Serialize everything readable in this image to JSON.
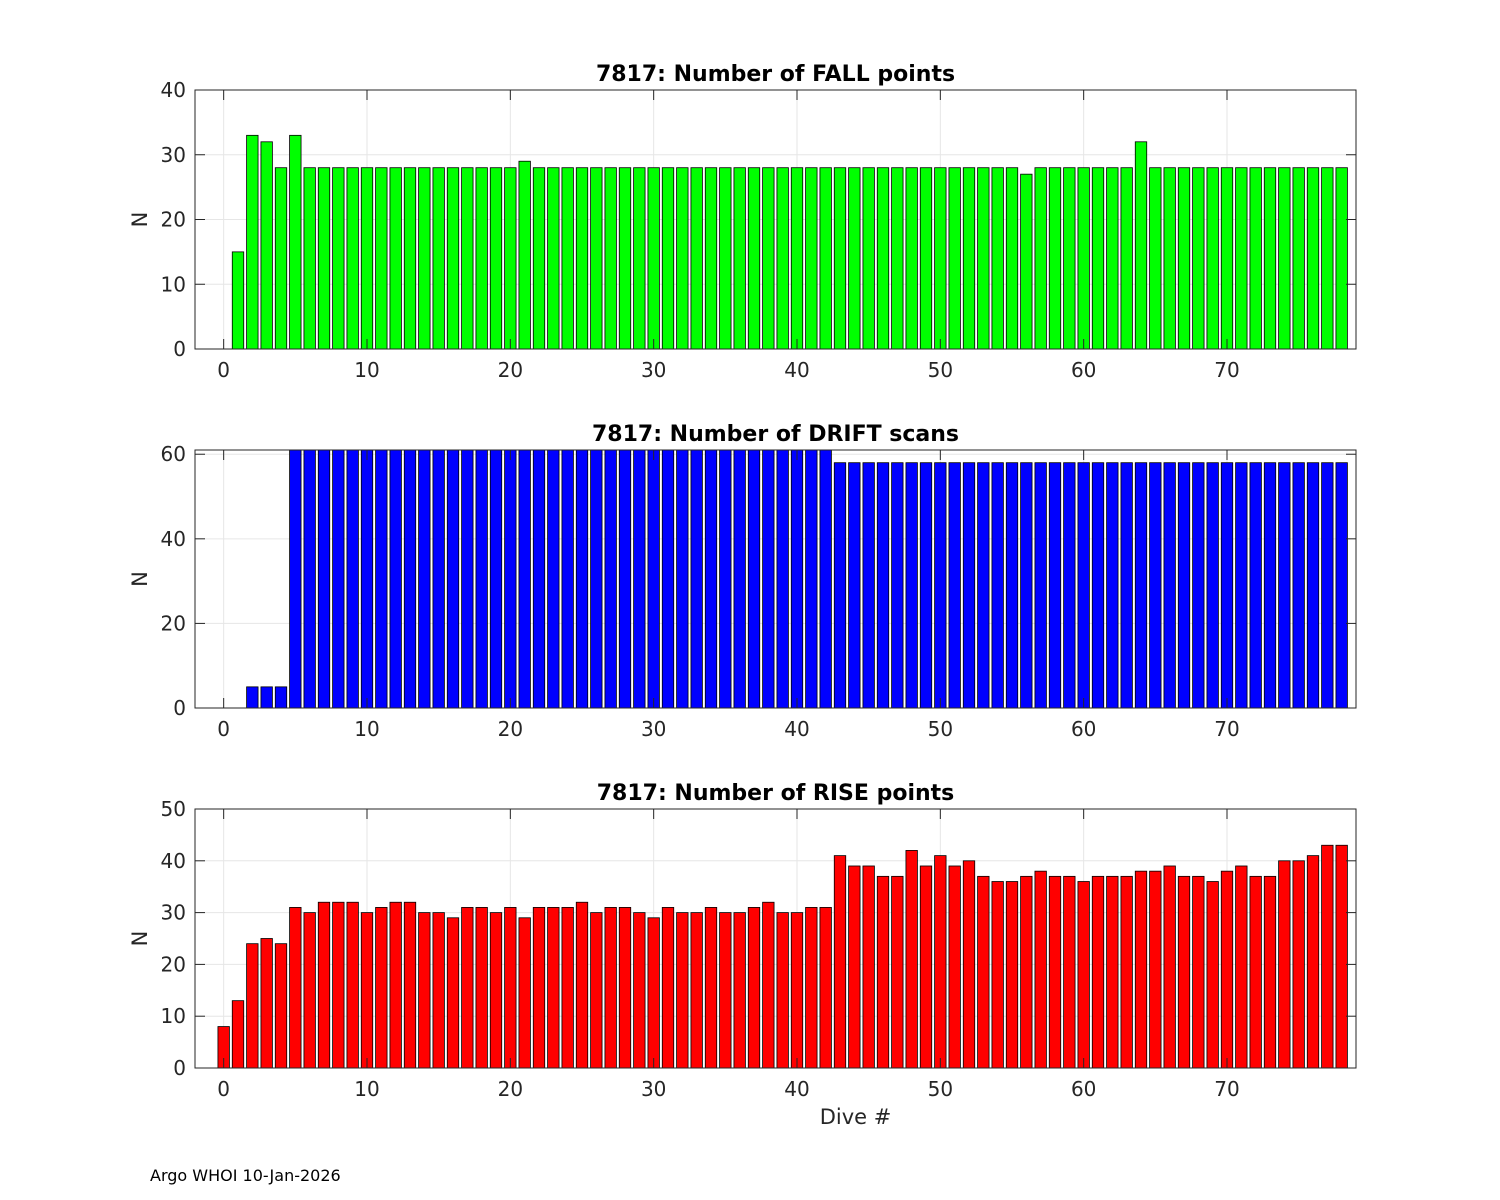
{
  "footer": "Argo WHOI 10-Jan-2026",
  "chart_data": [
    {
      "type": "bar",
      "title": "7817: Number of FALL points",
      "xlabel": "",
      "ylabel": "N",
      "xlim": [
        -2,
        79
      ],
      "ylim": [
        0,
        40
      ],
      "xticks": [
        0,
        10,
        20,
        30,
        40,
        50,
        60,
        70
      ],
      "yticks": [
        0,
        10,
        20,
        30,
        40
      ],
      "grid": true,
      "color": "#00ff00",
      "x": [
        1,
        2,
        3,
        4,
        5,
        6,
        7,
        8,
        9,
        10,
        11,
        12,
        13,
        14,
        15,
        16,
        17,
        18,
        19,
        20,
        21,
        22,
        23,
        24,
        25,
        26,
        27,
        28,
        29,
        30,
        31,
        32,
        33,
        34,
        35,
        36,
        37,
        38,
        39,
        40,
        41,
        42,
        43,
        44,
        45,
        46,
        47,
        48,
        49,
        50,
        51,
        52,
        53,
        54,
        55,
        56,
        57,
        58,
        59,
        60,
        61,
        62,
        63,
        64,
        65,
        66,
        67,
        68,
        69,
        70,
        71,
        72,
        73,
        74,
        75,
        76,
        77,
        78
      ],
      "values": [
        15,
        33,
        32,
        28,
        33,
        28,
        28,
        28,
        28,
        28,
        28,
        28,
        28,
        28,
        28,
        28,
        28,
        28,
        28,
        28,
        29,
        28,
        28,
        28,
        28,
        28,
        28,
        28,
        28,
        28,
        28,
        28,
        28,
        28,
        28,
        28,
        28,
        28,
        28,
        28,
        28,
        28,
        28,
        28,
        28,
        28,
        28,
        28,
        28,
        28,
        28,
        28,
        28,
        28,
        28,
        27,
        28,
        28,
        28,
        28,
        28,
        28,
        28,
        32,
        28,
        28,
        28,
        28,
        28,
        28,
        28,
        28,
        28,
        28,
        28,
        28,
        28,
        28
      ]
    },
    {
      "type": "bar",
      "title": "7817: Number of DRIFT scans",
      "xlabel": "",
      "ylabel": "N",
      "xlim": [
        -2,
        79
      ],
      "ylim": [
        0,
        61
      ],
      "xticks": [
        0,
        10,
        20,
        30,
        40,
        50,
        60,
        70
      ],
      "yticks": [
        0,
        20,
        40,
        60
      ],
      "grid": true,
      "color": "#0000ff",
      "x": [
        -1,
        0,
        1,
        2,
        3,
        4,
        5,
        6,
        7,
        8,
        9,
        10,
        11,
        12,
        13,
        14,
        15,
        16,
        17,
        18,
        19,
        20,
        21,
        22,
        23,
        24,
        25,
        26,
        27,
        28,
        29,
        30,
        31,
        32,
        33,
        34,
        35,
        36,
        37,
        38,
        39,
        40,
        41,
        42,
        43,
        44,
        45,
        46,
        47,
        48,
        49,
        50,
        51,
        52,
        53,
        54,
        55,
        56,
        57,
        58,
        59,
        60,
        61,
        62,
        63,
        64,
        65,
        66,
        67,
        68,
        69,
        70,
        71,
        72,
        73,
        74,
        75,
        76,
        77,
        78
      ],
      "values": [
        0,
        0,
        0,
        5,
        5,
        5,
        61,
        61,
        61,
        61,
        61,
        61,
        61,
        61,
        61,
        61,
        61,
        61,
        61,
        61,
        61,
        61,
        61,
        61,
        61,
        61,
        61,
        61,
        61,
        61,
        61,
        61,
        61,
        61,
        61,
        61,
        61,
        61,
        61,
        61,
        61,
        61,
        61,
        61,
        58,
        58,
        58,
        58,
        58,
        58,
        58,
        58,
        58,
        58,
        58,
        58,
        58,
        58,
        58,
        58,
        58,
        58,
        58,
        58,
        58,
        58,
        58,
        58,
        58,
        58,
        58,
        58,
        58,
        58,
        58,
        58,
        58,
        58,
        58,
        58
      ]
    },
    {
      "type": "bar",
      "title": "7817: Number of RISE points",
      "xlabel": "Dive #",
      "ylabel": "N",
      "xlim": [
        -2,
        79
      ],
      "ylim": [
        0,
        50
      ],
      "xticks": [
        0,
        10,
        20,
        30,
        40,
        50,
        60,
        70
      ],
      "yticks": [
        0,
        10,
        20,
        30,
        40,
        50
      ],
      "grid": true,
      "color": "#ff0000",
      "x": [
        0,
        1,
        2,
        3,
        4,
        5,
        6,
        7,
        8,
        9,
        10,
        11,
        12,
        13,
        14,
        15,
        16,
        17,
        18,
        19,
        20,
        21,
        22,
        23,
        24,
        25,
        26,
        27,
        28,
        29,
        30,
        31,
        32,
        33,
        34,
        35,
        36,
        37,
        38,
        39,
        40,
        41,
        42,
        43,
        44,
        45,
        46,
        47,
        48,
        49,
        50,
        51,
        52,
        53,
        54,
        55,
        56,
        57,
        58,
        59,
        60,
        61,
        62,
        63,
        64,
        65,
        66,
        67,
        68,
        69,
        70,
        71,
        72,
        73,
        74,
        75,
        76,
        77,
        78
      ],
      "values": [
        8,
        13,
        24,
        25,
        24,
        31,
        30,
        32,
        32,
        32,
        30,
        31,
        32,
        32,
        30,
        30,
        29,
        31,
        31,
        30,
        31,
        29,
        31,
        31,
        31,
        32,
        30,
        31,
        31,
        30,
        29,
        31,
        30,
        30,
        31,
        30,
        30,
        31,
        32,
        30,
        30,
        31,
        31,
        41,
        39,
        39,
        37,
        37,
        42,
        39,
        41,
        39,
        40,
        37,
        36,
        36,
        37,
        38,
        37,
        37,
        36,
        37,
        37,
        37,
        38,
        38,
        39,
        37,
        37,
        36,
        38,
        39,
        37,
        37,
        40,
        40,
        41,
        43,
        43
      ]
    }
  ]
}
